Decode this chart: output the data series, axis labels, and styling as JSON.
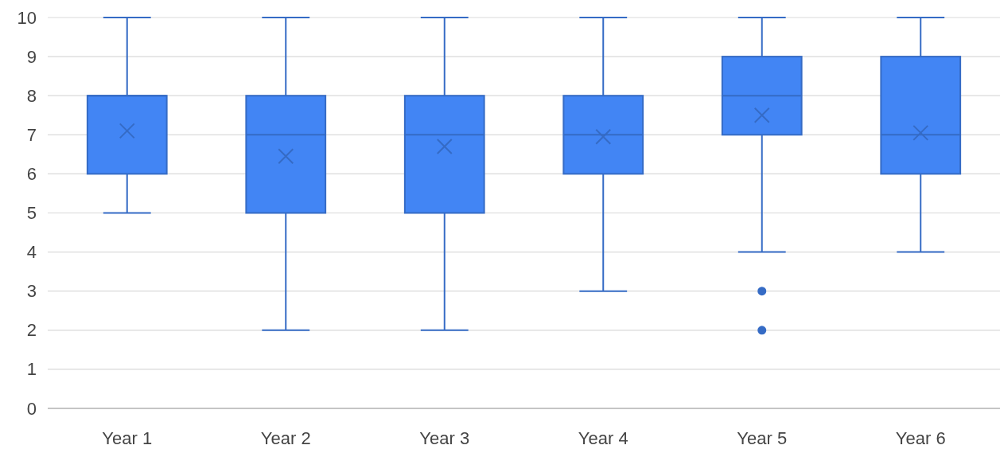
{
  "chart_data": {
    "type": "box",
    "categories": [
      "Year 1",
      "Year 2",
      "Year 3",
      "Year 4",
      "Year 5",
      "Year 6"
    ],
    "color": "#4285f4",
    "boxes": [
      {
        "low": 5,
        "q1": 6,
        "median": 8,
        "q3": 8,
        "high": 10,
        "mean": 7.1
      },
      {
        "low": 2,
        "q1": 5,
        "median": 7,
        "q3": 8,
        "high": 10,
        "mean": 6.45
      },
      {
        "low": 2,
        "q1": 5,
        "median": 7,
        "q3": 8,
        "high": 10,
        "mean": 6.7
      },
      {
        "low": 3,
        "q1": 6,
        "median": 7,
        "q3": 8,
        "high": 10,
        "mean": 6.95
      },
      {
        "low": 4,
        "q1": 7,
        "median": 8,
        "q3": 9,
        "high": 10,
        "mean": 7.5,
        "outliers": [
          3,
          2
        ]
      },
      {
        "low": 4,
        "q1": 6,
        "median": 7,
        "q3": 9,
        "high": 10,
        "mean": 7.05
      }
    ],
    "ylim": [
      0,
      10
    ],
    "yticks": [
      0,
      1,
      2,
      3,
      4,
      5,
      6,
      7,
      8,
      9,
      10
    ],
    "grid": "y"
  }
}
